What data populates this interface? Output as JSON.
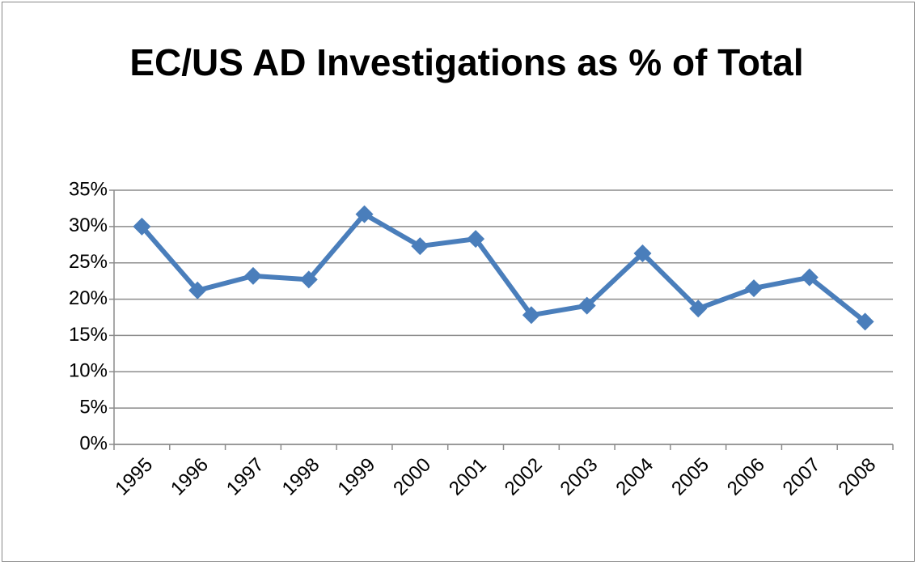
{
  "chart_data": {
    "type": "line",
    "title": "EC/US AD Investigations as % of Total",
    "categories": [
      "1995",
      "1996",
      "1997",
      "1998",
      "1999",
      "2000",
      "2001",
      "2002",
      "2003",
      "2004",
      "2005",
      "2006",
      "2007",
      "2008"
    ],
    "series": [
      {
        "color": "#4a7ebb",
        "values": [
          30,
          21.2,
          23.2,
          22.7,
          31.7,
          27.3,
          28.3,
          17.8,
          19.1,
          26.3,
          18.7,
          21.5,
          23,
          16.9
        ]
      }
    ],
    "ylim": [
      0,
      35
    ],
    "yticks": [
      {
        "value": 0,
        "label": "0%"
      },
      {
        "value": 5,
        "label": "5%"
      },
      {
        "value": 10,
        "label": "10%"
      },
      {
        "value": 15,
        "label": "15%"
      },
      {
        "value": 20,
        "label": "20%"
      },
      {
        "value": 25,
        "label": "25%"
      },
      {
        "value": 30,
        "label": "30%"
      },
      {
        "value": 35,
        "label": "35%"
      }
    ],
    "grid": true
  }
}
